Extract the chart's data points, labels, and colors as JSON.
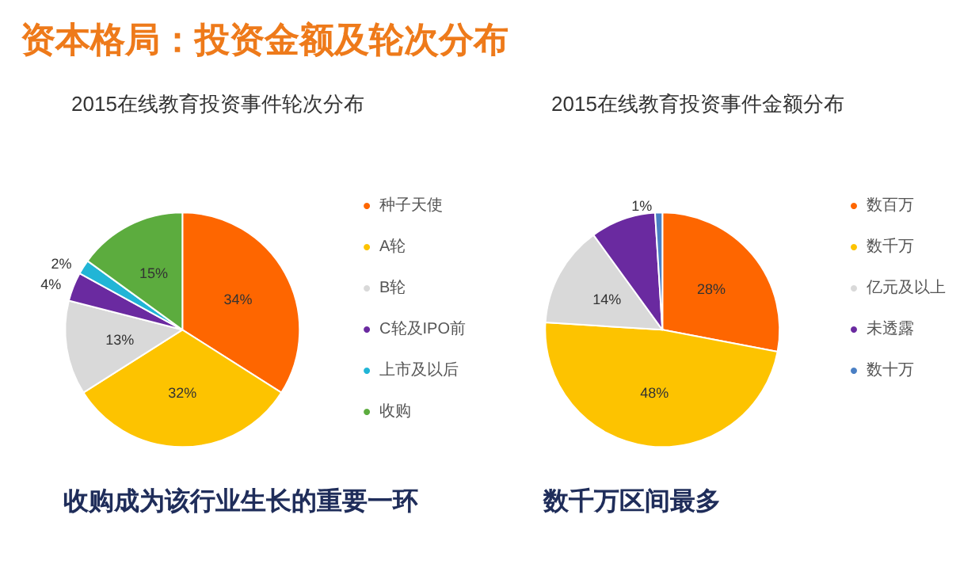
{
  "chart_data": [
    {
      "type": "other",
      "title": "资本格局：投资金额及轮次分布"
    },
    {
      "type": "pie",
      "title": "2015在线教育投资事件轮次分布",
      "categories": [
        "种子天使",
        "A轮",
        "B轮",
        "C轮及IPO前",
        "上市及以后",
        "收购"
      ],
      "values": [
        34,
        32,
        13,
        4,
        2,
        15
      ],
      "colors": [
        "#fe6600",
        "#fdc300",
        "#d9d9d9",
        "#6a2aa0",
        "#21b5d6",
        "#5cac3e"
      ],
      "value_labels": [
        "34%",
        "32%",
        "13%",
        "4%",
        "2%",
        "15%"
      ],
      "legend": "right",
      "annotations": [
        "收购成为该行业生长的重要一环"
      ]
    },
    {
      "type": "pie",
      "title": "2015在线教育投资事件金额分布",
      "categories": [
        "数百万",
        "数千万",
        "亿元及以上",
        "未透露",
        "数十万"
      ],
      "values": [
        28,
        48,
        14,
        9,
        1
      ],
      "colors": [
        "#fe6600",
        "#fdc300",
        "#d9d9d9",
        "#6a2aa0",
        "#4a7fc4"
      ],
      "value_labels": [
        "28%",
        "48%",
        "14%",
        null,
        "1%"
      ],
      "legend": "right",
      "annotations": [
        "数千万区间最多"
      ]
    }
  ]
}
